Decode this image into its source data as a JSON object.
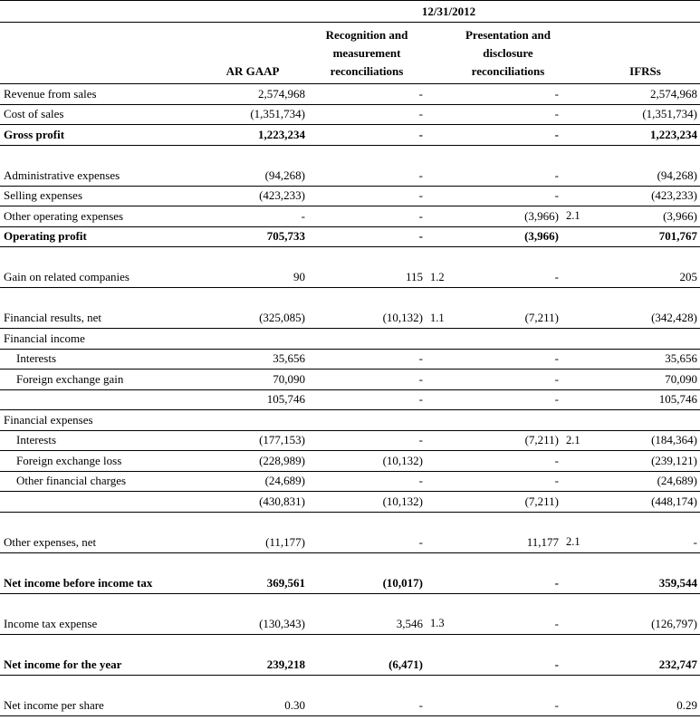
{
  "meta": {
    "date": "12/31/2012"
  },
  "table": {
    "columns": {
      "label": "",
      "ar_gaap": "AR GAAP",
      "recognition": [
        "Recognition and",
        "measurement",
        "reconciliations"
      ],
      "presentation": [
        "Presentation and",
        "disclosure",
        "reconciliations"
      ],
      "ifrs": "IFRSs"
    },
    "rows": [
      {
        "label": "Revenue from sales",
        "argaap": "2,574,968",
        "recog": "-",
        "pres": "-",
        "ifrs": "2,574,968"
      },
      {
        "label": "Cost of sales",
        "argaap": "(1,351,734)",
        "recog": "-",
        "pres": "-",
        "ifrs": "(1,351,734)"
      },
      {
        "label": "Gross profit",
        "argaap": "1,223,234",
        "recog": "-",
        "pres": "-",
        "ifrs": "1,223,234",
        "bold": true
      },
      {
        "spacer": true
      },
      {
        "label": "Administrative expenses",
        "argaap": "(94,268)",
        "recog": "-",
        "pres": "-",
        "ifrs": "(94,268)"
      },
      {
        "label": "Selling expenses",
        "argaap": "(423,233)",
        "recog": "-",
        "pres": "-",
        "ifrs": "(423,233)"
      },
      {
        "label": "Other operating expenses",
        "argaap": "-",
        "recog": "-",
        "pres": "(3,966)",
        "pres_note": "2.1",
        "ifrs": "(3,966)"
      },
      {
        "label": "Operating profit",
        "argaap": "705,733",
        "recog": "-",
        "pres": "(3,966)",
        "ifrs": "701,767",
        "bold": true
      },
      {
        "spacer": true
      },
      {
        "label": "Gain on related companies",
        "argaap": "90",
        "recog": "115",
        "recog_note": "1.2",
        "pres": "-",
        "ifrs": "205"
      },
      {
        "spacer": true
      },
      {
        "label": "Financial results, net",
        "argaap": "(325,085)",
        "recog": "(10,132)",
        "recog_note": "1.1",
        "pres": "(7,211)",
        "ifrs": "(342,428)"
      },
      {
        "label": "Financial income"
      },
      {
        "label": "Interests",
        "indent": true,
        "argaap": "35,656",
        "recog": "-",
        "pres": "-",
        "ifrs": "35,656"
      },
      {
        "label": "Foreign exchange gain",
        "indent": true,
        "argaap": "70,090",
        "recog": "-",
        "pres": "-",
        "ifrs": "70,090"
      },
      {
        "label": "",
        "argaap": "105,746",
        "recog": "-",
        "pres": "-",
        "ifrs": "105,746"
      },
      {
        "label": "Financial expenses"
      },
      {
        "label": "Interests",
        "indent": true,
        "argaap": "(177,153)",
        "recog": "-",
        "pres": "(7,211)",
        "pres_note": "2.1",
        "ifrs": "(184,364)"
      },
      {
        "label": "Foreign exchange loss",
        "indent": true,
        "argaap": "(228,989)",
        "recog": "(10,132)",
        "pres": "-",
        "ifrs": "(239,121)"
      },
      {
        "label": "Other financial charges",
        "indent": true,
        "argaap": "(24,689)",
        "recog": "-",
        "pres": "-",
        "ifrs": "(24,689)"
      },
      {
        "label": "",
        "argaap": "(430,831)",
        "recog": "(10,132)",
        "pres": "(7,211)",
        "ifrs": "(448,174)"
      },
      {
        "spacer": true
      },
      {
        "label": "Other expenses, net",
        "argaap": "(11,177)",
        "recog": "-",
        "pres": "11,177",
        "pres_note": "2.1",
        "ifrs": "-"
      },
      {
        "spacer": true
      },
      {
        "label": "Net income before income tax",
        "argaap": "369,561",
        "recog": "(10,017)",
        "pres": "-",
        "ifrs": "359,544",
        "bold": true
      },
      {
        "spacer": true
      },
      {
        "label": "Income tax expense",
        "argaap": "(130,343)",
        "recog": "3,546",
        "recog_note": "1.3",
        "pres": "-",
        "ifrs": "(126,797)"
      },
      {
        "spacer": true
      },
      {
        "label": "Net income for the year",
        "argaap": "239,218",
        "recog": "(6,471)",
        "pres": "-",
        "ifrs": "232,747",
        "bold": true
      },
      {
        "spacer": true
      },
      {
        "label": "Net income per share",
        "argaap": "0.30",
        "recog": "-",
        "pres": "-",
        "ifrs": "0.29"
      }
    ]
  }
}
